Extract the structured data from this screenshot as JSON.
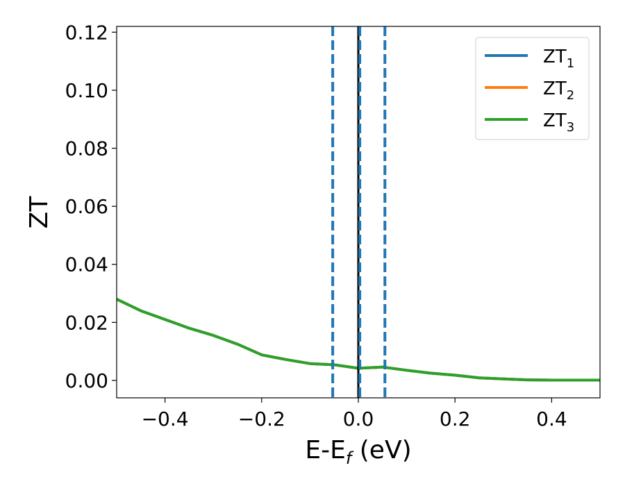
{
  "chart_data": {
    "type": "line",
    "xlabel": "E-E",
    "xlabel_sub": "f",
    "xlabel_unit": " (eV)",
    "ylabel": "ZT",
    "xlim": [
      -0.5,
      0.5
    ],
    "ylim": [
      -0.006,
      0.122
    ],
    "x_ticks": [
      -0.4,
      -0.2,
      0.0,
      0.2,
      0.4
    ],
    "x_tick_labels": [
      "−0.4",
      "−0.2",
      "0.0",
      "0.2",
      "0.4"
    ],
    "y_ticks": [
      0.0,
      0.02,
      0.04,
      0.06,
      0.08,
      0.1,
      0.12
    ],
    "y_tick_labels": [
      "0.00",
      "0.02",
      "0.04",
      "0.06",
      "0.08",
      "0.10",
      "0.12"
    ],
    "grid": false,
    "legend_position": "top-right",
    "series": [
      {
        "name": "ZT",
        "sub": "1",
        "color": "#1f77b4",
        "x": [
          -0.5,
          -0.45,
          -0.4,
          -0.35,
          -0.3,
          -0.25,
          -0.2,
          -0.15,
          -0.1,
          -0.05,
          0.0,
          0.05,
          0.1,
          0.15,
          0.2,
          0.25,
          0.3,
          0.35,
          0.4,
          0.45,
          0.5
        ],
        "y": [
          0.028,
          0.024,
          0.021,
          0.018,
          0.0155,
          0.0125,
          0.0088,
          0.0072,
          0.0058,
          0.0054,
          0.0042,
          0.0046,
          0.0035,
          0.0025,
          0.0018,
          0.0009,
          0.0005,
          0.0002,
          0.0001,
          0.0001,
          0.0001
        ]
      },
      {
        "name": "ZT",
        "sub": "2",
        "color": "#ff7f0e",
        "x": [
          -0.5,
          -0.45,
          -0.4,
          -0.35,
          -0.3,
          -0.25,
          -0.2,
          -0.15,
          -0.1,
          -0.05,
          0.0,
          0.05,
          0.1,
          0.15,
          0.2,
          0.25,
          0.3,
          0.35,
          0.4,
          0.45,
          0.5
        ],
        "y": [
          0.028,
          0.024,
          0.021,
          0.018,
          0.0155,
          0.0125,
          0.0088,
          0.0072,
          0.0058,
          0.0054,
          0.0042,
          0.0046,
          0.0035,
          0.0025,
          0.0018,
          0.0009,
          0.0005,
          0.0002,
          0.0001,
          0.0001,
          0.0001
        ]
      },
      {
        "name": "ZT",
        "sub": "3",
        "color": "#2ca02c",
        "x": [
          -0.5,
          -0.45,
          -0.4,
          -0.35,
          -0.3,
          -0.25,
          -0.2,
          -0.15,
          -0.1,
          -0.05,
          0.0,
          0.05,
          0.1,
          0.15,
          0.2,
          0.25,
          0.3,
          0.35,
          0.4,
          0.45,
          0.5
        ],
        "y": [
          0.028,
          0.024,
          0.021,
          0.018,
          0.0155,
          0.0125,
          0.0088,
          0.0072,
          0.0058,
          0.0054,
          0.0042,
          0.0046,
          0.0035,
          0.0025,
          0.0018,
          0.0009,
          0.0005,
          0.0002,
          0.0001,
          0.0001,
          0.0001
        ]
      }
    ],
    "vertical_lines": [
      {
        "x": -0.053,
        "style": "dashed",
        "color": "#1f77b4"
      },
      {
        "x": 0.0,
        "style": "solid",
        "color": "#000000"
      },
      {
        "x": 0.003,
        "style": "dashed",
        "color": "#1f77b4"
      },
      {
        "x": 0.055,
        "style": "dashed",
        "color": "#1f77b4"
      }
    ]
  }
}
